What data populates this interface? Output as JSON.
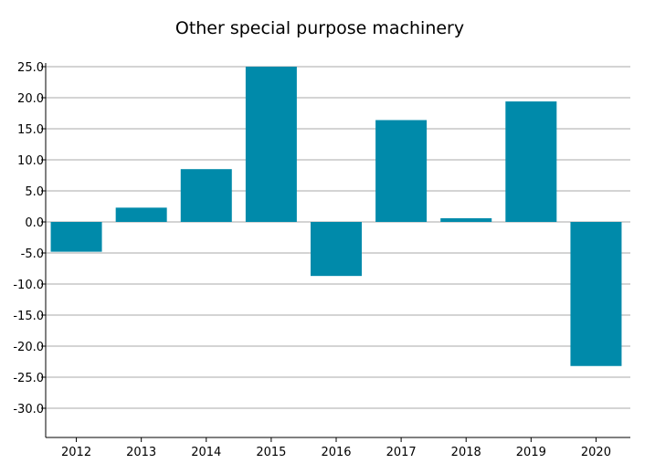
{
  "chart_data": {
    "type": "bar",
    "title": "Other special purpose machinery",
    "categories": [
      "2012",
      "2013",
      "2014",
      "2015",
      "2016",
      "2017",
      "2018",
      "2019",
      "2020"
    ],
    "values": [
      -4.8,
      2.3,
      8.5,
      25.0,
      -8.7,
      16.4,
      0.6,
      19.4,
      -23.2
    ],
    "ylim": [
      -35,
      25.8
    ],
    "yticks": [
      25,
      20,
      15,
      10,
      5,
      0,
      -5,
      -10,
      -15,
      -20,
      -25,
      -30
    ],
    "ytick_labels": [
      "25.0",
      "20.0",
      "15.0",
      "10.0",
      "5.0",
      "0.0",
      "-5.0",
      "-10.0",
      "-15.0",
      "-20.0",
      "-25.0",
      "-30.0"
    ],
    "bar_color": "#008aaa",
    "grid_color": "#aaaaaa",
    "grid": true,
    "xlabel": "",
    "ylabel": ""
  }
}
